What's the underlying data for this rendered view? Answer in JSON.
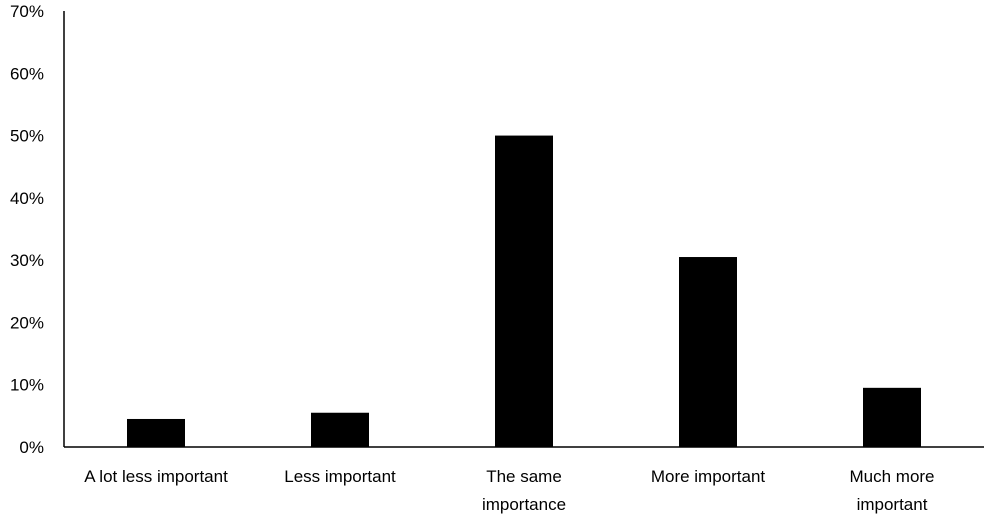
{
  "chart_data": {
    "type": "bar",
    "categories": [
      [
        "A lot less important"
      ],
      [
        "Less important"
      ],
      [
        "The same",
        "importance"
      ],
      [
        "More important"
      ],
      [
        "Much more",
        "important"
      ]
    ],
    "values": [
      4.5,
      5.5,
      50,
      30.5,
      9.5
    ],
    "value_unit": "%",
    "yticks": [
      "0%",
      "10%",
      "20%",
      "30%",
      "40%",
      "50%",
      "60%",
      "70%"
    ],
    "ylim": [
      0,
      70
    ],
    "title": "",
    "xlabel": "",
    "ylabel": "",
    "grid": false,
    "bar_color": "#000000",
    "axis_color": "#000000"
  }
}
